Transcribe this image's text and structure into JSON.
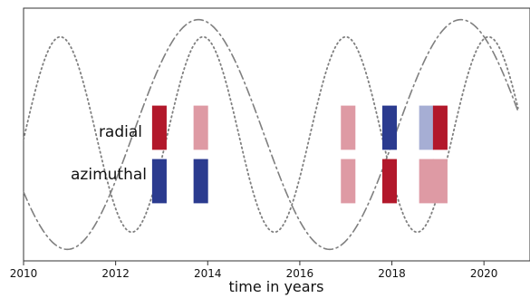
{
  "chart_data": {
    "type": "timeline",
    "xlabel": "time in years",
    "xlim": [
      2010,
      2021
    ],
    "ylim": [
      -1.1,
      1.1
    ],
    "x_ticks": [
      {
        "value": 2010,
        "label": "2010"
      },
      {
        "value": 2012,
        "label": "2012"
      },
      {
        "value": 2014,
        "label": "2014"
      },
      {
        "value": 2016,
        "label": "2016"
      },
      {
        "value": 2018,
        "label": "2018"
      },
      {
        "value": 2020,
        "label": "2020"
      }
    ],
    "rows": [
      {
        "key": "radial",
        "label": "radial"
      },
      {
        "key": "azimuthal",
        "label": "azimuthal"
      }
    ],
    "colors": {
      "red": "#b2182b",
      "red_light": "#de9aa4",
      "blue": "#2b3b8f",
      "blue_light": "#a6aed4",
      "curve": "#7f7f7f",
      "axis": "#333333"
    },
    "events": [
      {
        "row": "radial",
        "start": 2012.8,
        "end": 2013.1,
        "color": "red"
      },
      {
        "row": "radial",
        "start": 2013.7,
        "end": 2014.0,
        "color": "red_light"
      },
      {
        "row": "radial",
        "start": 2016.9,
        "end": 2017.2,
        "color": "red_light"
      },
      {
        "row": "radial",
        "start": 2017.8,
        "end": 2018.1,
        "color": "blue"
      },
      {
        "row": "radial",
        "start": 2018.6,
        "end": 2018.9,
        "color": "blue_light"
      },
      {
        "row": "radial",
        "start": 2018.9,
        "end": 2019.2,
        "color": "red"
      },
      {
        "row": "azimuthal",
        "start": 2012.8,
        "end": 2013.1,
        "color": "blue"
      },
      {
        "row": "azimuthal",
        "start": 2013.7,
        "end": 2014.0,
        "color": "blue"
      },
      {
        "row": "azimuthal",
        "start": 2016.9,
        "end": 2017.2,
        "color": "red_light"
      },
      {
        "row": "azimuthal",
        "start": 2017.8,
        "end": 2018.1,
        "color": "red"
      },
      {
        "row": "azimuthal",
        "start": 2018.6,
        "end": 2018.9,
        "color": "red_light"
      },
      {
        "row": "azimuthal",
        "start": 2018.9,
        "end": 2019.2,
        "color": "red_light"
      }
    ],
    "series": [
      {
        "style": "dashdot",
        "period_years": 5.7,
        "peak_year": 2013.8,
        "amplitude": 1.0,
        "x_range": [
          2010,
          2020.75
        ]
      },
      {
        "style": "dotted",
        "period_years": 3.1,
        "peak_year": 2010.8,
        "amplitude": 0.85,
        "x_range": [
          2010,
          2020.75
        ]
      }
    ]
  }
}
